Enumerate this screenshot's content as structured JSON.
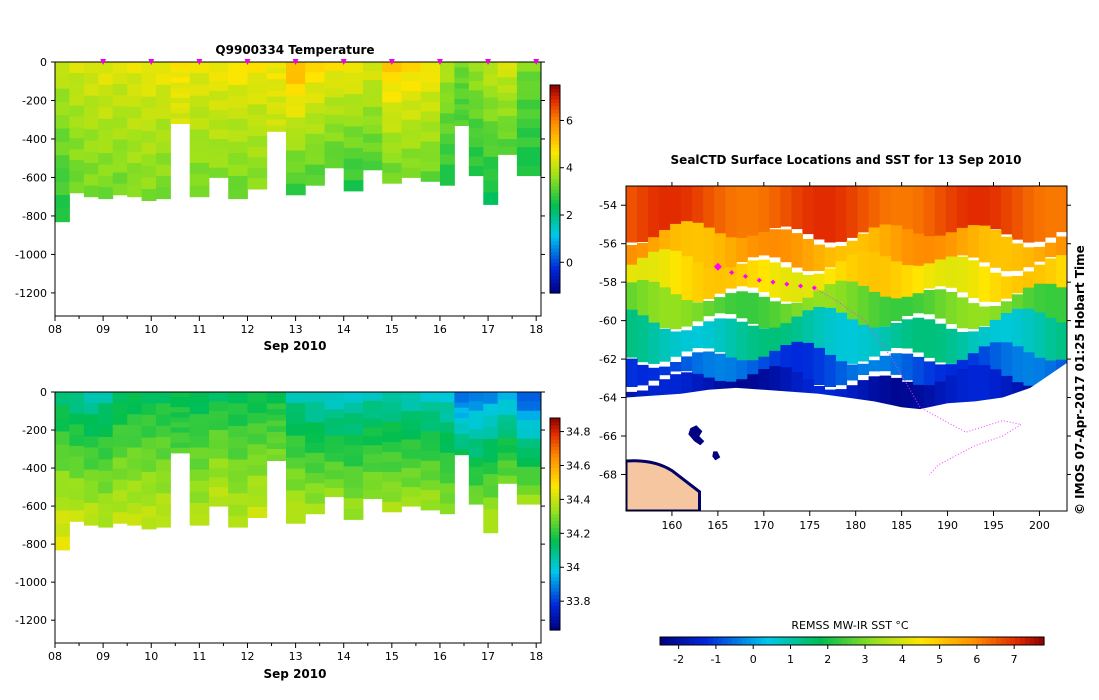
{
  "credit": "© IMOS 07-Apr-2017 01:25 Hobart Time",
  "chart_data": [
    {
      "type": "heatmap",
      "title": "Q9900334  Temperature",
      "xlabel": "Sep 2010",
      "ylabel": "",
      "x_tick_labels": [
        "08",
        "09",
        "10",
        "11",
        "12",
        "13",
        "14",
        "15",
        "16",
        "17",
        "18"
      ],
      "xlim": [
        8.0,
        18.1
      ],
      "ylim": [
        -1320,
        0
      ],
      "y_ticks": [
        0,
        -200,
        -400,
        -600,
        -800,
        -1000,
        -1200
      ],
      "colorbar_ticks": [
        0,
        2,
        4,
        6
      ],
      "colorbar_range": [
        -1.3,
        7.5
      ],
      "profile_markers_day": [
        9,
        10,
        11,
        12,
        13,
        14,
        15,
        16,
        17,
        18
      ],
      "profiles": [
        {
          "day": 8.0,
          "bottom": -830,
          "surface": 4.2,
          "deep": 2.6
        },
        {
          "day": 8.3,
          "bottom": -680,
          "surface": 4.3,
          "deep": 3.2
        },
        {
          "day": 8.6,
          "bottom": -700,
          "surface": 4.4,
          "deep": 3.3
        },
        {
          "day": 8.9,
          "bottom": -710,
          "surface": 4.5,
          "deep": 3.3
        },
        {
          "day": 9.2,
          "bottom": -690,
          "surface": 4.4,
          "deep": 3.3
        },
        {
          "day": 9.5,
          "bottom": -700,
          "surface": 4.5,
          "deep": 3.4
        },
        {
          "day": 9.8,
          "bottom": -720,
          "surface": 4.6,
          "deep": 3.4
        },
        {
          "day": 10.1,
          "bottom": -710,
          "surface": 4.6,
          "deep": 3.3
        },
        {
          "day": 10.4,
          "bottom": -320,
          "surface": 4.7,
          "deep": 4.2
        },
        {
          "day": 10.8,
          "bottom": -700,
          "surface": 4.6,
          "deep": 3.3
        },
        {
          "day": 11.2,
          "bottom": -600,
          "surface": 4.7,
          "deep": 3.5
        },
        {
          "day": 11.6,
          "bottom": -710,
          "surface": 4.8,
          "deep": 3.2
        },
        {
          "day": 12.0,
          "bottom": -660,
          "surface": 4.7,
          "deep": 3.4
        },
        {
          "day": 12.4,
          "bottom": -360,
          "surface": 4.6,
          "deep": 4.1
        },
        {
          "day": 12.8,
          "bottom": -690,
          "surface": 5.6,
          "deep": 2.8
        },
        {
          "day": 13.2,
          "bottom": -640,
          "surface": 5.0,
          "deep": 3.0
        },
        {
          "day": 13.6,
          "bottom": -550,
          "surface": 4.8,
          "deep": 3.0
        },
        {
          "day": 14.0,
          "bottom": -670,
          "surface": 4.8,
          "deep": 2.6
        },
        {
          "day": 14.4,
          "bottom": -560,
          "surface": 4.4,
          "deep": 3.0
        },
        {
          "day": 14.8,
          "bottom": -630,
          "surface": 5.2,
          "deep": 3.2
        },
        {
          "day": 15.2,
          "bottom": -600,
          "surface": 5.0,
          "deep": 3.3
        },
        {
          "day": 15.6,
          "bottom": -620,
          "surface": 4.8,
          "deep": 3.2
        },
        {
          "day": 16.0,
          "bottom": -640,
          "surface": 4.0,
          "deep": 2.6
        },
        {
          "day": 16.3,
          "bottom": -330,
          "surface": 3.3,
          "deep": 3.0
        },
        {
          "day": 16.6,
          "bottom": -590,
          "surface": 3.8,
          "deep": 2.6
        },
        {
          "day": 16.9,
          "bottom": -740,
          "surface": 4.2,
          "deep": 2.4
        },
        {
          "day": 17.2,
          "bottom": -480,
          "surface": 4.4,
          "deep": 3.0
        },
        {
          "day": 17.6,
          "bottom": -590,
          "surface": 3.5,
          "deep": 2.5
        }
      ]
    },
    {
      "type": "heatmap",
      "title": "",
      "xlabel": "Sep 2010",
      "ylabel": "",
      "x_tick_labels": [
        "08",
        "09",
        "10",
        "11",
        "12",
        "13",
        "14",
        "15",
        "16",
        "17",
        "18"
      ],
      "xlim": [
        8.0,
        18.1
      ],
      "ylim": [
        -1320,
        0
      ],
      "y_ticks": [
        0,
        -200,
        -400,
        -600,
        -800,
        -1000,
        -1200
      ],
      "colorbar_ticks": [
        33.8,
        34,
        34.2,
        34.4,
        34.6,
        34.8
      ],
      "colorbar_range": [
        33.63,
        34.88
      ],
      "profiles": [
        {
          "day": 8.0,
          "bottom": -830,
          "surface": 34.08,
          "deep": 34.46
        },
        {
          "day": 8.3,
          "bottom": -680,
          "surface": 34.05,
          "deep": 34.4
        },
        {
          "day": 8.6,
          "bottom": -700,
          "surface": 34.02,
          "deep": 34.4
        },
        {
          "day": 8.9,
          "bottom": -710,
          "surface": 34.05,
          "deep": 34.38
        },
        {
          "day": 9.2,
          "bottom": -690,
          "surface": 34.1,
          "deep": 34.4
        },
        {
          "day": 9.5,
          "bottom": -700,
          "surface": 34.12,
          "deep": 34.4
        },
        {
          "day": 9.8,
          "bottom": -720,
          "surface": 34.13,
          "deep": 34.4
        },
        {
          "day": 10.1,
          "bottom": -710,
          "surface": 34.13,
          "deep": 34.4
        },
        {
          "day": 10.4,
          "bottom": -320,
          "surface": 34.14,
          "deep": 34.25
        },
        {
          "day": 10.8,
          "bottom": -700,
          "surface": 34.12,
          "deep": 34.38
        },
        {
          "day": 11.2,
          "bottom": -600,
          "surface": 34.13,
          "deep": 34.4
        },
        {
          "day": 11.6,
          "bottom": -710,
          "surface": 34.13,
          "deep": 34.38
        },
        {
          "day": 12.0,
          "bottom": -660,
          "surface": 34.13,
          "deep": 34.4
        },
        {
          "day": 12.4,
          "bottom": -360,
          "surface": 34.14,
          "deep": 34.3
        },
        {
          "day": 12.8,
          "bottom": -690,
          "surface": 34.03,
          "deep": 34.4
        },
        {
          "day": 13.2,
          "bottom": -640,
          "surface": 34.0,
          "deep": 34.36
        },
        {
          "day": 13.6,
          "bottom": -550,
          "surface": 33.98,
          "deep": 34.33
        },
        {
          "day": 14.0,
          "bottom": -670,
          "surface": 34.0,
          "deep": 34.35
        },
        {
          "day": 14.4,
          "bottom": -560,
          "surface": 34.02,
          "deep": 34.33
        },
        {
          "day": 14.8,
          "bottom": -630,
          "surface": 34.02,
          "deep": 34.36
        },
        {
          "day": 15.2,
          "bottom": -600,
          "surface": 34.01,
          "deep": 34.35
        },
        {
          "day": 15.6,
          "bottom": -620,
          "surface": 34.0,
          "deep": 34.36
        },
        {
          "day": 16.0,
          "bottom": -640,
          "surface": 33.98,
          "deep": 34.33
        },
        {
          "day": 16.3,
          "bottom": -330,
          "surface": 33.82,
          "deep": 34.15
        },
        {
          "day": 16.6,
          "bottom": -590,
          "surface": 33.85,
          "deep": 34.3
        },
        {
          "day": 16.9,
          "bottom": -740,
          "surface": 33.88,
          "deep": 34.4
        },
        {
          "day": 17.2,
          "bottom": -480,
          "surface": 33.92,
          "deep": 34.3
        },
        {
          "day": 17.6,
          "bottom": -590,
          "surface": 33.78,
          "deep": 34.35
        }
      ]
    },
    {
      "type": "heatmap",
      "title": "SealCTD Surface Locations and SST for 13 Sep 2010",
      "xlabel": "",
      "ylabel": "",
      "x_ticks": [
        160,
        165,
        170,
        175,
        180,
        185,
        190,
        195,
        200
      ],
      "y_ticks": [
        -54,
        -56,
        -58,
        -60,
        -62,
        -64,
        -66,
        -68
      ],
      "xlim": [
        155,
        203
      ],
      "ylim": [
        -69.9,
        -53.0
      ],
      "colorbar_label": "REMSS MW-IR SST °C",
      "colorbar_ticks": [
        -2,
        -1,
        0,
        1,
        2,
        3,
        4,
        5,
        6,
        7
      ],
      "colorbar_range": [
        -2.5,
        7.8
      ],
      "ice_edge_lat": [
        [
          155,
          -64.0
        ],
        [
          158,
          -63.9
        ],
        [
          161,
          -63.8
        ],
        [
          164,
          -63.6
        ],
        [
          167,
          -63.5
        ],
        [
          170,
          -63.6
        ],
        [
          173,
          -63.7
        ],
        [
          176,
          -63.8
        ],
        [
          179,
          -64.0
        ],
        [
          182,
          -64.2
        ],
        [
          185,
          -64.5
        ],
        [
          187,
          -64.6
        ],
        [
          190,
          -64.3
        ],
        [
          193,
          -64.2
        ],
        [
          196,
          -64.0
        ],
        [
          199,
          -63.5
        ],
        [
          203,
          -62.2
        ]
      ],
      "sst_zones": [
        {
          "lat_top": -53.0,
          "sst": 6.6
        },
        {
          "lat_top": -55.5,
          "sst": 5.5
        },
        {
          "lat_top": -57.0,
          "sst": 4.6
        },
        {
          "lat_top": -58.6,
          "sst": 2.8
        },
        {
          "lat_top": -60.0,
          "sst": 1.0
        },
        {
          "lat_top": -61.8,
          "sst": -0.8
        },
        {
          "lat_top": -63.0,
          "sst": -1.8
        }
      ],
      "seal_surface_locations": [
        {
          "lon": 165.0,
          "lat": -57.2
        },
        {
          "lon": 166.5,
          "lat": -57.5
        },
        {
          "lon": 168.0,
          "lat": -57.7
        },
        {
          "lon": 169.5,
          "lat": -57.9
        },
        {
          "lon": 171.0,
          "lat": -58.0
        },
        {
          "lon": 172.5,
          "lat": -58.1
        },
        {
          "lon": 174.0,
          "lat": -58.2
        },
        {
          "lon": 175.5,
          "lat": -58.3
        }
      ],
      "track": [
        [
          175.5,
          -58.3
        ],
        [
          178,
          -59
        ],
        [
          181,
          -60
        ],
        [
          184,
          -62
        ],
        [
          187,
          -64.5
        ],
        [
          190,
          -65.3
        ],
        [
          192,
          -65.8
        ],
        [
          194,
          -65.5
        ],
        [
          196,
          -65.2
        ],
        [
          198,
          -65.4
        ],
        [
          196,
          -66
        ],
        [
          193,
          -66.5
        ],
        [
          191,
          -67
        ],
        [
          189,
          -67.5
        ],
        [
          188,
          -68
        ]
      ]
    }
  ]
}
